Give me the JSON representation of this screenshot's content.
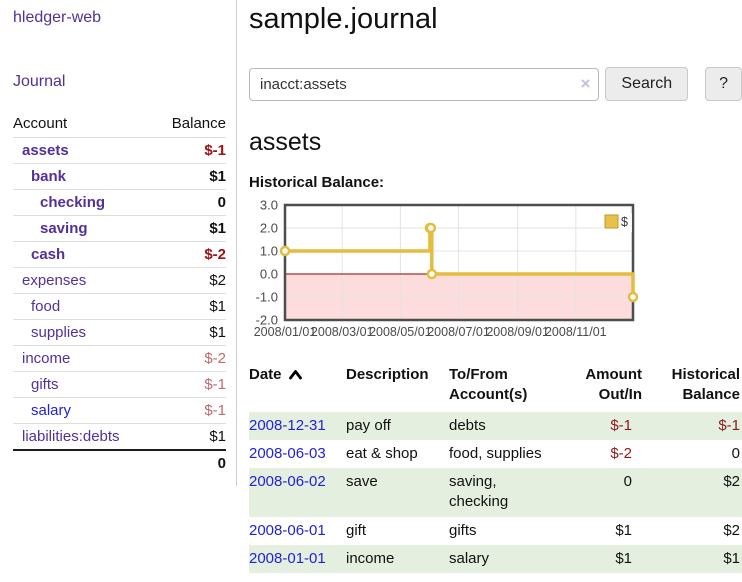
{
  "colors": {
    "purple": "#53309b",
    "blue": "#2222d6",
    "neg": "#8b1a1a",
    "neg_bold": "#a31111",
    "neg_soft": "#bf6a6e",
    "stripe": "#e4efdf",
    "gold": "#e4bc3e",
    "legend_fill": "#e8c14a",
    "legend_border": "#b89b2e",
    "chart_border": "#4d4d4d",
    "grid": "#e3e3e3",
    "axis_text": "#4a4a4a",
    "pink": "#fcdcdc",
    "zero": "#8b0000",
    "rowline": "#ddd",
    "btn_bg": "#ececec",
    "btn_border": "#c8c8c8",
    "input_border": "#bbb",
    "clear_x": "#c9bedb"
  },
  "app": {
    "brand": "hledger-web",
    "nav_journal": "Journal"
  },
  "sidebar": {
    "headers": {
      "account": "Account",
      "balance": "Balance"
    },
    "accounts": [
      {
        "name": "assets",
        "depth": 1,
        "in_account": true,
        "balance": "$-1",
        "negative": "strong"
      },
      {
        "name": "bank",
        "depth": 2,
        "in_account": true,
        "balance": "$1"
      },
      {
        "name": "checking",
        "depth": 3,
        "in_account": true,
        "balance": "0"
      },
      {
        "name": "saving",
        "depth": 3,
        "in_account": true,
        "balance": "$1"
      },
      {
        "name": "cash",
        "depth": 2,
        "in_account": true,
        "balance": "$-2",
        "negative": "strong"
      },
      {
        "name": "expenses",
        "depth": 1,
        "in_account": false,
        "balance": "$2"
      },
      {
        "name": "food",
        "depth": 2,
        "in_account": false,
        "balance": "$1"
      },
      {
        "name": "supplies",
        "depth": 2,
        "in_account": false,
        "balance": "$1"
      },
      {
        "name": "income",
        "depth": 1,
        "in_account": false,
        "balance": "$-2",
        "negative": "soft"
      },
      {
        "name": "gifts",
        "depth": 2,
        "in_account": false,
        "balance": "$-1",
        "negative": "soft"
      },
      {
        "name": "salary",
        "depth": 2,
        "in_account": false,
        "balance": "$-1",
        "negative": "soft",
        "unvisited": true
      },
      {
        "name": "liabilities:debts",
        "depth": 1,
        "in_account": false,
        "balance": "$1"
      }
    ],
    "total": "0"
  },
  "main": {
    "title": "sample.journal",
    "search": {
      "value": "inacct:assets",
      "clear_icon": "×",
      "button_label": "Search",
      "help_label": "?"
    },
    "account_heading": "assets",
    "chart_label": "Historical Balance:"
  },
  "chart_data": {
    "type": "line",
    "step": true,
    "title": "Historical Balance",
    "series": [
      {
        "name": "$",
        "points": [
          [
            "2008-01-01",
            1
          ],
          [
            "2008-06-01",
            2
          ],
          [
            "2008-06-02",
            2
          ],
          [
            "2008-06-03",
            0
          ],
          [
            "2008-12-31",
            -1
          ]
        ]
      }
    ],
    "x_range": [
      "2008-01-01",
      "2008-12-31"
    ],
    "ylim": [
      -2,
      3
    ],
    "y_ticks": [
      3.0,
      2.0,
      1.0,
      0.0,
      -1.0,
      -2.0
    ],
    "x_ticks": [
      {
        "label": "2008/01/01",
        "date": "2008-01-01"
      },
      {
        "label": "2008/03/01",
        "date": "2008-03-01"
      },
      {
        "label": "2008/05/01",
        "date": "2008-05-01"
      },
      {
        "label": "2008/07/01",
        "date": "2008-07-01"
      },
      {
        "label": "2008/09/01",
        "date": "2008-09-01"
      },
      {
        "label": "2008/11/01",
        "date": "2008-11-01"
      }
    ],
    "legend": {
      "label": "$",
      "position": "top-right"
    },
    "negative_region": {
      "from": 0,
      "to": -2
    },
    "grid": true
  },
  "register": {
    "columns": [
      {
        "l1": "Date",
        "l2": "",
        "sorted": "asc"
      },
      {
        "l1": "Description",
        "l2": ""
      },
      {
        "l1": "To/From",
        "l2": "Account(s)"
      },
      {
        "l1": "Amount",
        "l2": "Out/In"
      },
      {
        "l1": "Historical",
        "l2": "Balance"
      }
    ],
    "rows": [
      {
        "date": "2008-12-31",
        "description": "pay off",
        "accounts": "debts",
        "amount": "$-1",
        "amount_negative": true,
        "balance": "$-1",
        "balance_negative": true,
        "striped": true
      },
      {
        "date": "2008-06-03",
        "description": "eat & shop",
        "accounts": "food, supplies",
        "amount": "$-2",
        "amount_negative": true,
        "balance": "0",
        "balance_negative": false,
        "striped": false
      },
      {
        "date": "2008-06-02",
        "description": "save",
        "accounts": "saving, checking",
        "amount": "0",
        "amount_negative": false,
        "balance": "$2",
        "balance_negative": false,
        "striped": true
      },
      {
        "date": "2008-06-01",
        "description": "gift",
        "accounts": "gifts",
        "amount": "$1",
        "amount_negative": false,
        "balance": "$2",
        "balance_negative": false,
        "striped": false
      },
      {
        "date": "2008-01-01",
        "description": "income",
        "accounts": "salary",
        "amount": "$1",
        "amount_negative": false,
        "balance": "$1",
        "balance_negative": false,
        "striped": true
      }
    ]
  }
}
